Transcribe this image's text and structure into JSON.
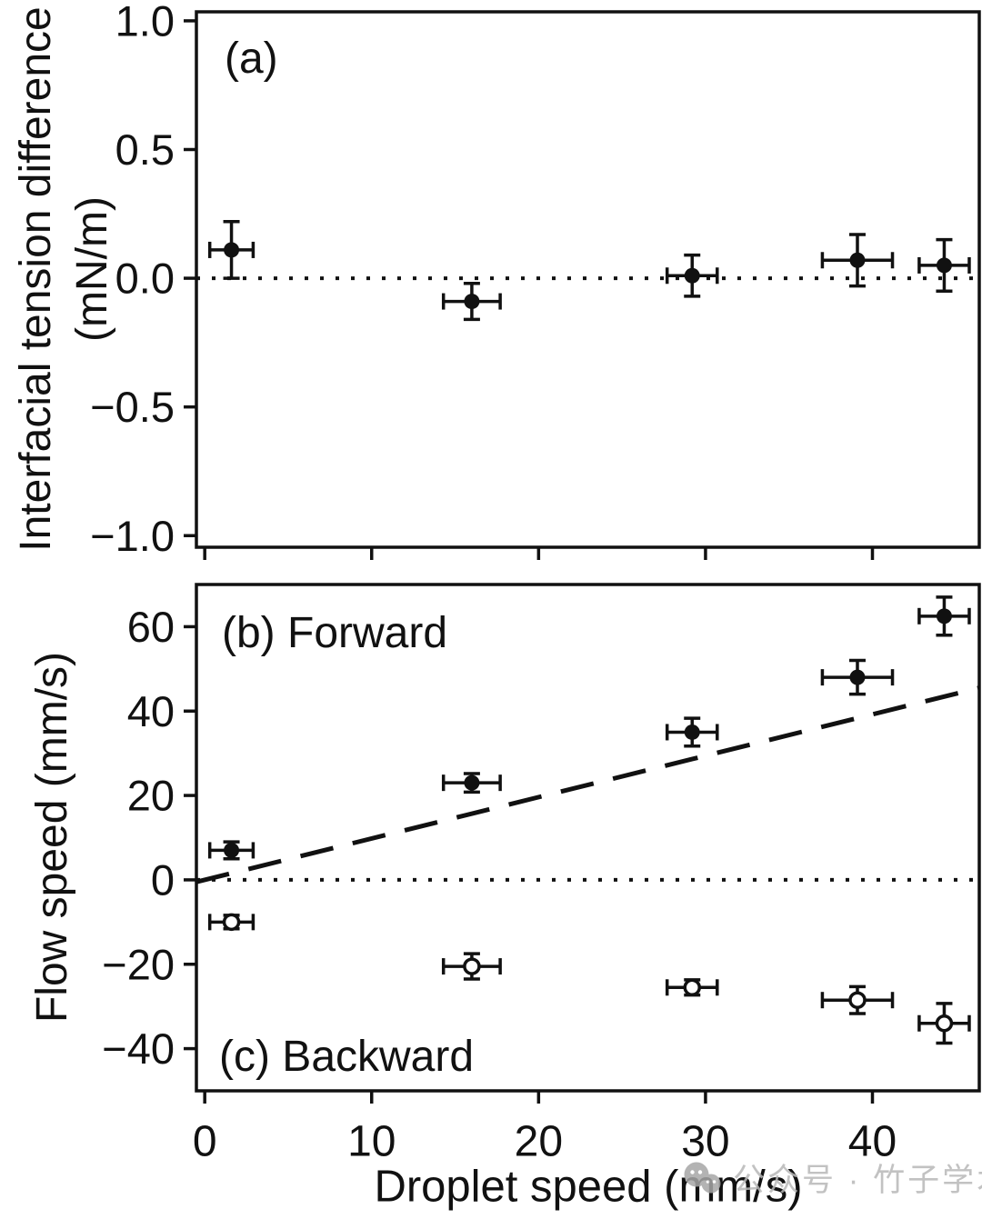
{
  "figure": {
    "panel_a_label": "(a)",
    "panel_b_label": "(b) Forward",
    "panel_c_label": "(c) Backward",
    "y_axis_title_a_line1": "Interfacial tension difference",
    "y_axis_title_a_line2": "(mN/m)",
    "y_axis_title_b": "Flow speed (mm/s)",
    "x_axis_title": "Droplet speed (mm/s)"
  },
  "watermark": {
    "text": "公众号 · 竹子学术",
    "icon": "wechat-chat-bubbles-icon",
    "color": "#b8b8b8",
    "icon_color": "#a6a6a6"
  },
  "chart_data": [
    {
      "type": "scatter",
      "panel_label": "(a)",
      "ylabel": "Interfacial tension difference (mN/m)",
      "xlabel": "Droplet speed (mm/s)",
      "xlim": [
        -0.5,
        46.4
      ],
      "ylim": [
        -1.045,
        1.035
      ],
      "x_ticks": [
        0,
        10,
        20,
        30,
        40
      ],
      "x_tick_labels": [],
      "y_ticks": [
        1.0,
        0.5,
        0.0,
        -0.5,
        -1.0
      ],
      "y_tick_labels": [
        "1.0",
        "0.5",
        "0.0",
        "−0.5",
        "−1.0"
      ],
      "grid": false,
      "legend": "none",
      "reference_lines": [
        {
          "style": "dotted",
          "y": 0
        }
      ],
      "series": [
        {
          "name": "interfacial tension difference",
          "marker": "filled-circle",
          "points": [
            {
              "x": 1.6,
              "y": 0.11,
              "xerr": 1.3,
              "yerr": 0.11
            },
            {
              "x": 16.0,
              "y": -0.09,
              "xerr": 1.7,
              "yerr": 0.07
            },
            {
              "x": 29.2,
              "y": 0.01,
              "xerr": 1.5,
              "yerr": 0.08
            },
            {
              "x": 39.1,
              "y": 0.07,
              "xerr": 2.1,
              "yerr": 0.1
            },
            {
              "x": 44.3,
              "y": 0.05,
              "xerr": 1.5,
              "yerr": 0.1
            }
          ]
        }
      ]
    },
    {
      "type": "scatter",
      "panel_labels": [
        "(b) Forward",
        "(c) Backward"
      ],
      "ylabel": "Flow speed (mm/s)",
      "xlabel": "Droplet speed (mm/s)",
      "xlim": [
        -0.5,
        46.4
      ],
      "ylim": [
        -50,
        70
      ],
      "x_ticks": [
        0,
        10,
        20,
        30,
        40
      ],
      "x_tick_labels": [
        "0",
        "10",
        "20",
        "30",
        "40"
      ],
      "y_ticks": [
        60,
        40,
        20,
        0,
        -20,
        -40
      ],
      "y_tick_labels": [
        "60",
        "40",
        "20",
        "0",
        "−20",
        "−40"
      ],
      "grid": false,
      "legend": "none",
      "reference_lines": [
        {
          "style": "dotted",
          "y": 0
        },
        {
          "style": "dashed",
          "from": [
            -0.5,
            -0.5
          ],
          "to": [
            46.4,
            45.5
          ]
        }
      ],
      "series": [
        {
          "name": "forward flow",
          "marker": "filled-circle",
          "points": [
            {
              "x": 1.6,
              "y": 7.0,
              "xerr": 1.3,
              "yerr": 2.0
            },
            {
              "x": 16.0,
              "y": 23.0,
              "xerr": 1.7,
              "yerr": 2.2
            },
            {
              "x": 29.2,
              "y": 35.0,
              "xerr": 1.5,
              "yerr": 3.3
            },
            {
              "x": 39.1,
              "y": 48.0,
              "xerr": 2.1,
              "yerr": 4.0
            },
            {
              "x": 44.3,
              "y": 62.5,
              "xerr": 1.5,
              "yerr": 4.5
            }
          ]
        },
        {
          "name": "backward flow",
          "marker": "open-circle",
          "points": [
            {
              "x": 1.6,
              "y": -10.0,
              "xerr": 1.3,
              "yerr": 1.6
            },
            {
              "x": 16.0,
              "y": -20.5,
              "xerr": 1.7,
              "yerr": 3.0
            },
            {
              "x": 29.2,
              "y": -25.5,
              "xerr": 1.5,
              "yerr": 1.8
            },
            {
              "x": 39.1,
              "y": -28.5,
              "xerr": 2.1,
              "yerr": 3.2
            },
            {
              "x": 44.3,
              "y": -34.0,
              "xerr": 1.5,
              "yerr": 4.7
            }
          ]
        }
      ]
    }
  ]
}
